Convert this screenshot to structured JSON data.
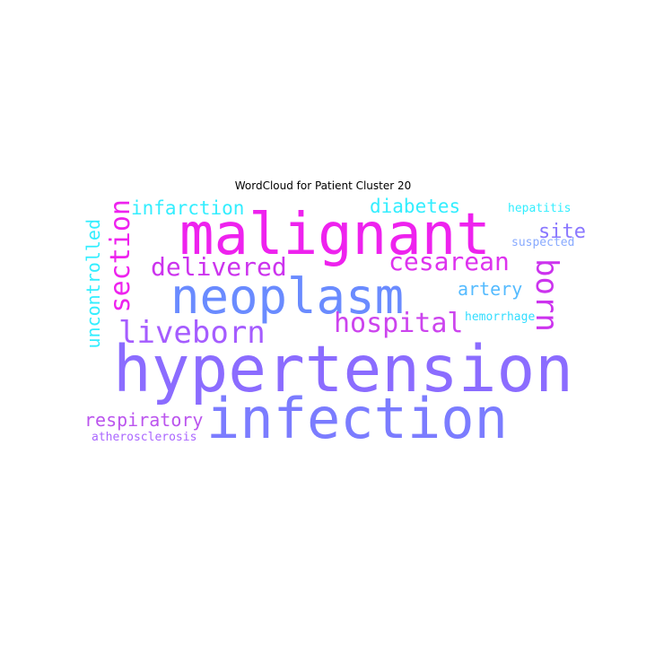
{
  "title": "WordCloud for Patient Cluster 20",
  "words": {
    "hypertension": {
      "text": "hypertension",
      "color": "#8b6cff"
    },
    "infection": {
      "text": "infection",
      "color": "#7b7cff"
    },
    "malignant": {
      "text": "malignant",
      "color": "#ee22ee"
    },
    "neoplasm": {
      "text": "neoplasm",
      "color": "#6a8bff"
    },
    "liveborn": {
      "text": "liveborn",
      "color": "#a55cff"
    },
    "delivered": {
      "text": "delivered",
      "color": "#cc33ee"
    },
    "cesarean": {
      "text": "cesarean",
      "color": "#dd33ee"
    },
    "section": {
      "text": "section",
      "color": "#ee22ee"
    },
    "born": {
      "text": "born",
      "color": "#cc33ee"
    },
    "hospital": {
      "text": "hospital",
      "color": "#cc44ee"
    },
    "infarction": {
      "text": "infarction",
      "color": "#33eeff"
    },
    "diabetes": {
      "text": "diabetes",
      "color": "#33eeff"
    },
    "uncontrolled": {
      "text": "uncontrolled",
      "color": "#33eeff"
    },
    "respiratory": {
      "text": "respiratory",
      "color": "#bb55ee"
    },
    "site": {
      "text": "site",
      "color": "#8a77ff"
    },
    "artery": {
      "text": "artery",
      "color": "#55bbff"
    },
    "hepatitis": {
      "text": "hepatitis",
      "color": "#33eeff"
    },
    "suspected": {
      "text": "suspected",
      "color": "#88aaff"
    },
    "hemorrhage": {
      "text": "hemorrhage",
      "color": "#33ddff"
    },
    "atherosclerosis": {
      "text": "atherosclerosis",
      "color": "#aa66ff"
    }
  }
}
